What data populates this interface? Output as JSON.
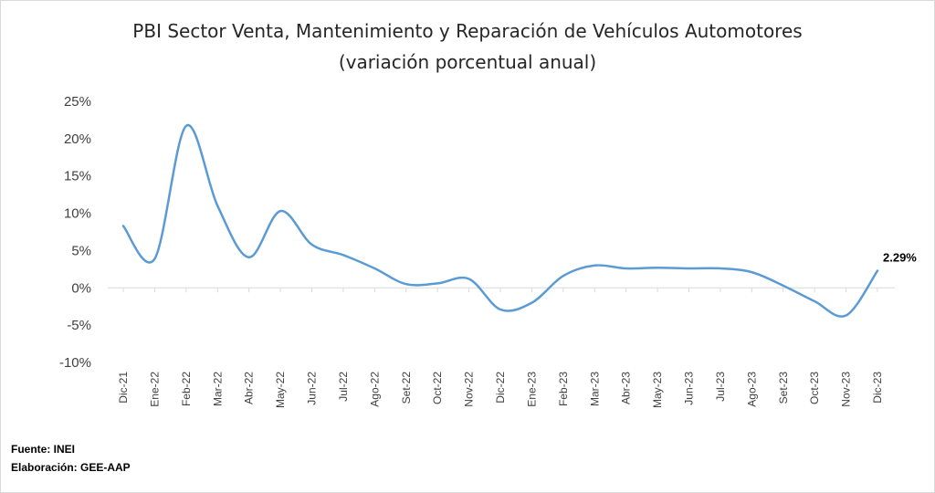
{
  "chart_data": {
    "type": "line",
    "title": "PBI Sector Venta, Mantenimiento y Reparación de Vehículos Automotores",
    "subtitle": "(variación porcentual anual)",
    "categories": [
      "Dic-21",
      "Ene-22",
      "Feb-22",
      "Mar-22",
      "Abr-22",
      "May-22",
      "Jun-22",
      "Jul-22",
      "Ago-22",
      "Set-22",
      "Oct-22",
      "Nov-22",
      "Dic-22",
      "Ene-23",
      "Feb-23",
      "Mar-23",
      "Abr-23",
      "May-23",
      "Jun-23",
      "Jul-23",
      "Ago-23",
      "Set-23",
      "Oct-23",
      "Nov-23",
      "Dic-23"
    ],
    "values": [
      8.3,
      3.9,
      21.7,
      11.0,
      4.1,
      10.3,
      5.8,
      4.4,
      2.6,
      0.5,
      0.6,
      1.2,
      -2.9,
      -2.0,
      1.6,
      3.0,
      2.6,
      2.7,
      2.6,
      2.6,
      2.1,
      0.3,
      -1.8,
      -3.7,
      2.29
    ],
    "ylim": [
      -10,
      25
    ],
    "yticks": [
      25,
      20,
      15,
      10,
      5,
      0,
      -5,
      -10
    ],
    "ytick_labels": [
      "25%",
      "20%",
      "15%",
      "10%",
      "5%",
      "0%",
      "-5%",
      "-10%"
    ],
    "xlabel": "",
    "ylabel": "",
    "line_color": "#5b9bd5",
    "grid": false,
    "annotation": "2.29%"
  },
  "footer": {
    "source": "Fuente: INEI",
    "elaboration": "Elaboración: GEE-AAP"
  }
}
